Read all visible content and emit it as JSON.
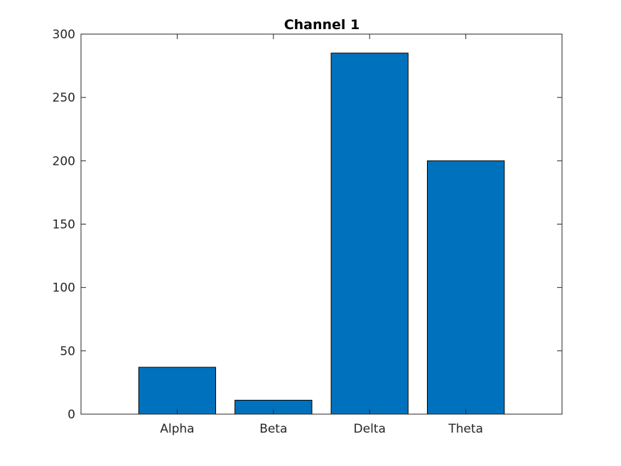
{
  "chart_data": {
    "type": "bar",
    "title": "Channel 1",
    "xlabel": "",
    "ylabel": "",
    "categories": [
      "Alpha",
      "Beta",
      "Delta",
      "Theta"
    ],
    "values": [
      37,
      11,
      285,
      200
    ],
    "ylim": [
      0,
      300
    ],
    "yticks": [
      0,
      50,
      100,
      150,
      200,
      250,
      300
    ],
    "grid": false,
    "legend": "none",
    "bar_color": "#0072BD",
    "bar_edge_color": "#000000"
  }
}
